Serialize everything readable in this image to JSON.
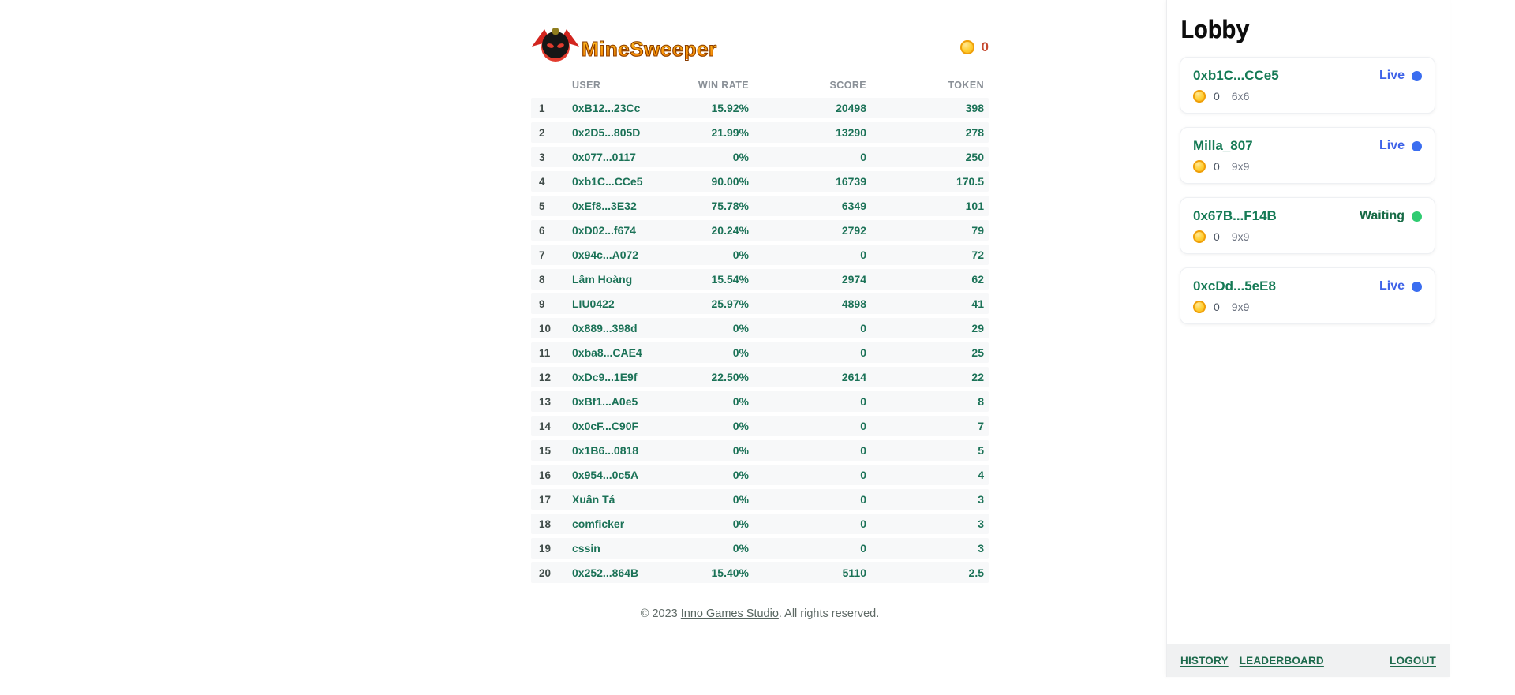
{
  "header": {
    "logo_text": "MineSweeper",
    "coin_count": "0"
  },
  "leaderboard": {
    "columns": [
      "USER",
      "WIN RATE",
      "SCORE",
      "TOKEN"
    ],
    "rows": [
      {
        "rank": "1",
        "user": "0xB12...23Cc",
        "win_rate": "15.92%",
        "score": "20498",
        "token": "398"
      },
      {
        "rank": "2",
        "user": "0x2D5...805D",
        "win_rate": "21.99%",
        "score": "13290",
        "token": "278"
      },
      {
        "rank": "3",
        "user": "0x077...0117",
        "win_rate": "0%",
        "score": "0",
        "token": "250"
      },
      {
        "rank": "4",
        "user": "0xb1C...CCe5",
        "win_rate": "90.00%",
        "score": "16739",
        "token": "170.5"
      },
      {
        "rank": "5",
        "user": "0xEf8...3E32",
        "win_rate": "75.78%",
        "score": "6349",
        "token": "101"
      },
      {
        "rank": "6",
        "user": "0xD02...f674",
        "win_rate": "20.24%",
        "score": "2792",
        "token": "79"
      },
      {
        "rank": "7",
        "user": "0x94c...A072",
        "win_rate": "0%",
        "score": "0",
        "token": "72"
      },
      {
        "rank": "8",
        "user": "Lâm Hoàng",
        "win_rate": "15.54%",
        "score": "2974",
        "token": "62"
      },
      {
        "rank": "9",
        "user": "LIU0422",
        "win_rate": "25.97%",
        "score": "4898",
        "token": "41"
      },
      {
        "rank": "10",
        "user": "0x889...398d",
        "win_rate": "0%",
        "score": "0",
        "token": "29"
      },
      {
        "rank": "11",
        "user": "0xba8...CAE4",
        "win_rate": "0%",
        "score": "0",
        "token": "25"
      },
      {
        "rank": "12",
        "user": "0xDc9...1E9f",
        "win_rate": "22.50%",
        "score": "2614",
        "token": "22"
      },
      {
        "rank": "13",
        "user": "0xBf1...A0e5",
        "win_rate": "0%",
        "score": "0",
        "token": "8"
      },
      {
        "rank": "14",
        "user": "0x0cF...C90F",
        "win_rate": "0%",
        "score": "0",
        "token": "7"
      },
      {
        "rank": "15",
        "user": "0x1B6...0818",
        "win_rate": "0%",
        "score": "0",
        "token": "5"
      },
      {
        "rank": "16",
        "user": "0x954...0c5A",
        "win_rate": "0%",
        "score": "0",
        "token": "4"
      },
      {
        "rank": "17",
        "user": "Xuân Tá",
        "win_rate": "0%",
        "score": "0",
        "token": "3"
      },
      {
        "rank": "18",
        "user": "comficker",
        "win_rate": "0%",
        "score": "0",
        "token": "3"
      },
      {
        "rank": "19",
        "user": "cssin",
        "win_rate": "0%",
        "score": "0",
        "token": "3"
      },
      {
        "rank": "20",
        "user": "0x252...864B",
        "win_rate": "15.40%",
        "score": "5110",
        "token": "2.5"
      }
    ]
  },
  "footer": {
    "prefix": "© 2023 ",
    "link_label": "Inno Games Studio",
    "suffix": ". All rights reserved."
  },
  "lobby": {
    "title": "Lobby",
    "rooms": [
      {
        "name": "0xb1C...CCe5",
        "status": "Live",
        "stake": "0",
        "grid": "6x6"
      },
      {
        "name": "Milla_807",
        "status": "Live",
        "stake": "0",
        "grid": "9x9"
      },
      {
        "name": "0x67B...F14B",
        "status": "Waiting",
        "stake": "0",
        "grid": "9x9"
      },
      {
        "name": "0xcDd...5eE8",
        "status": "Live",
        "stake": "0",
        "grid": "9x9"
      }
    ],
    "links": {
      "history": "HISTORY",
      "leaderboard": "LEADERBOARD",
      "logout": "LOGOUT"
    }
  },
  "colors": {
    "accent_green": "#1b7257",
    "live_blue": "#3f63e8",
    "waiting_dot_green": "#2fcb71",
    "coin_gold": "#f5a80c",
    "coin_count_red": "#c5492f",
    "row_band": "#f7f8f9"
  }
}
